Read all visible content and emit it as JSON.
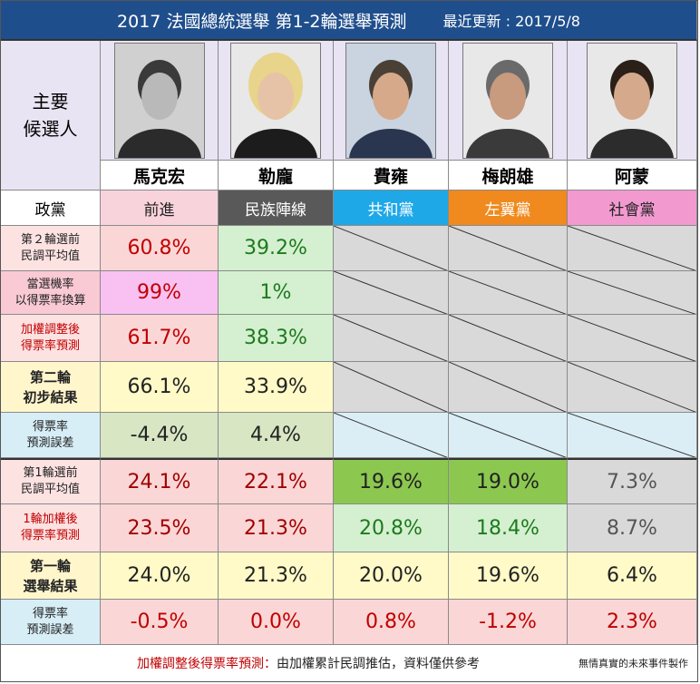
{
  "header": {
    "title": "2017  法國總統選舉 第1-2輪選舉預測",
    "updated": "最近更新 :  2017/5/8"
  },
  "corner_label": [
    "主要",
    "候選人"
  ],
  "party_label": "政黨",
  "candidates": [
    {
      "name": "馬克宏",
      "party": "前進",
      "party_bg": "#f9d3dc",
      "party_color": "#222222"
    },
    {
      "name": "勒龐",
      "party": "民族陣線",
      "party_bg": "#595959",
      "party_color": "#ffffff"
    },
    {
      "name": "費雍",
      "party": "共和黨",
      "party_bg": "#1fa8e8",
      "party_color": "#ffffff"
    },
    {
      "name": "梅朗雄",
      "party": "左翼黨",
      "party_bg": "#f08a1e",
      "party_color": "#ffffff"
    },
    {
      "name": "阿蒙",
      "party": "社會黨",
      "party_bg": "#f29ad0",
      "party_color": "#222222"
    }
  ],
  "rows": [
    {
      "label": [
        "第２輪選前",
        "民調平均值"
      ],
      "label_bg": "#fde2e2",
      "label_color": "#222222",
      "cells": [
        {
          "v": "60.8%",
          "bg": "#fbd6d6",
          "c": "#c00000"
        },
        {
          "v": "39.2%",
          "bg": "#d4f0d0",
          "c": "#1e7a1e"
        }
      ],
      "empty": "diag"
    },
    {
      "label": [
        "當選機率",
        "以得票率換算"
      ],
      "label_bg": "#f9c9d4",
      "label_color": "#222222",
      "cells": [
        {
          "v": "99%",
          "bg": "#f9c0f2",
          "c": "#c00000"
        },
        {
          "v": "1%",
          "bg": "#d4f0d0",
          "c": "#1e7a1e"
        }
      ],
      "empty": "diag"
    },
    {
      "label": [
        "加權調整後",
        "得票率預測"
      ],
      "label_bg": "#fde2e2",
      "label_color": "#c00000",
      "cells": [
        {
          "v": "61.7%",
          "bg": "#fbd6d6",
          "c": "#c00000"
        },
        {
          "v": "38.3%",
          "bg": "#d4f0d0",
          "c": "#1e7a1e"
        }
      ],
      "empty": "diag"
    },
    {
      "label": [
        "第二輪",
        "初步結果"
      ],
      "label_bg": "#fff6cc",
      "label_color": "#222222",
      "bold": true,
      "cells": [
        {
          "v": "66.1%",
          "bg": "#fffac8",
          "c": "#222222"
        },
        {
          "v": "33.9%",
          "bg": "#fffac8",
          "c": "#222222"
        }
      ],
      "empty": "diag"
    },
    {
      "label": [
        "得票率",
        "預測誤差"
      ],
      "label_bg": "#d7eef7",
      "label_color": "#222222",
      "cells": [
        {
          "v": "-4.4%",
          "bg": "#d8e6c4",
          "c": "#222222"
        },
        {
          "v": "4.4%",
          "bg": "#d8e6c4",
          "c": "#222222"
        }
      ],
      "empty": "diag-blue"
    },
    {
      "label": [
        "第1輪選前",
        "民調平均值"
      ],
      "label_bg": "#fde2e2",
      "label_color": "#222222",
      "cells": [
        {
          "v": "24.1%",
          "bg": "#fbd6d6",
          "c": "#a00000"
        },
        {
          "v": "22.1%",
          "bg": "#fbd6d6",
          "c": "#a00000"
        },
        {
          "v": "19.6%",
          "bg": "#8cc850",
          "c": "#222222"
        },
        {
          "v": "19.0%",
          "bg": "#8cc850",
          "c": "#222222"
        },
        {
          "v": "7.3%",
          "bg": "#d9d9d9",
          "c": "#555555"
        }
      ]
    },
    {
      "label": [
        "1輪加權後",
        "得票率預測"
      ],
      "label_bg": "#fde2e2",
      "label_color": "#c00000",
      "cells": [
        {
          "v": "23.5%",
          "bg": "#fbd6d6",
          "c": "#a00000"
        },
        {
          "v": "21.3%",
          "bg": "#fbd6d6",
          "c": "#a00000"
        },
        {
          "v": "20.8%",
          "bg": "#d4f0d0",
          "c": "#1e7a1e"
        },
        {
          "v": "18.4%",
          "bg": "#d4f0d0",
          "c": "#1e7a1e"
        },
        {
          "v": "8.7%",
          "bg": "#d9d9d9",
          "c": "#555555"
        }
      ]
    },
    {
      "label": [
        "第一輪",
        "選舉結果"
      ],
      "label_bg": "#fff6cc",
      "label_color": "#222222",
      "bold": true,
      "cells": [
        {
          "v": "24.0%",
          "bg": "#fffac8",
          "c": "#222222"
        },
        {
          "v": "21.3%",
          "bg": "#fffac8",
          "c": "#222222"
        },
        {
          "v": "20.0%",
          "bg": "#fffac8",
          "c": "#222222"
        },
        {
          "v": "19.6%",
          "bg": "#fffac8",
          "c": "#222222"
        },
        {
          "v": "6.4%",
          "bg": "#fffac8",
          "c": "#222222"
        }
      ]
    },
    {
      "label": [
        "得票率",
        "預測誤差"
      ],
      "label_bg": "#d7eef7",
      "label_color": "#222222",
      "cells": [
        {
          "v": "-0.5%",
          "bg": "#fbd6d6",
          "c": "#c00000"
        },
        {
          "v": "0.0%",
          "bg": "#fbd6d6",
          "c": "#c00000"
        },
        {
          "v": "0.8%",
          "bg": "#fbd6d6",
          "c": "#c00000"
        },
        {
          "v": "-1.2%",
          "bg": "#fbd6d6",
          "c": "#c00000"
        },
        {
          "v": "2.3%",
          "bg": "#fbd6d6",
          "c": "#c00000"
        }
      ]
    }
  ],
  "footer": {
    "note_red": "加權調整後得票率預測：",
    "note_black": "由加權累計民調推估，資料僅供參考",
    "credit": "無情真實的未來事件製作"
  }
}
